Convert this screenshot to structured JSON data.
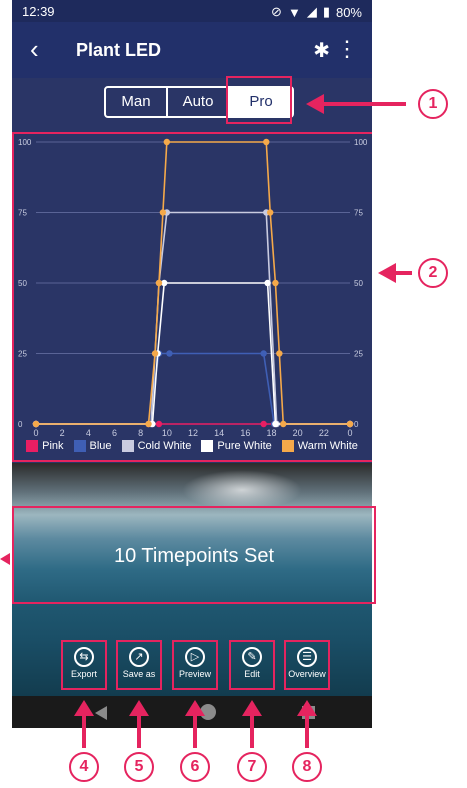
{
  "status": {
    "time": "12:39",
    "battery": "80%"
  },
  "appbar": {
    "title": "Plant LED",
    "back_icon": "back-icon",
    "bluetooth_icon": "bluetooth-icon",
    "more_icon": "more-vert-icon"
  },
  "modes": [
    "Man",
    "Auto",
    "Pro"
  ],
  "active_mode": "Pro",
  "chart_data": {
    "type": "line",
    "x_ticks": [
      "0",
      "2",
      "4",
      "6",
      "8",
      "10",
      "12",
      "14",
      "16",
      "18",
      "20",
      "22",
      "0"
    ],
    "y_ticks": [
      "0",
      "25",
      "50",
      "75",
      "100"
    ],
    "ylim": [
      0,
      100
    ],
    "xlim": [
      0,
      24
    ],
    "series": [
      {
        "name": "Pink",
        "color": "#e91e63",
        "x": [
          0,
          8.6,
          9.4,
          17.4,
          18.2,
          24
        ],
        "y": [
          0,
          0,
          0,
          0,
          0,
          0
        ]
      },
      {
        "name": "Blue",
        "color": "#3f5fb5",
        "x": [
          0,
          8.6,
          9.4,
          10.2,
          17.4,
          18.2,
          24
        ],
        "y": [
          0,
          0,
          25,
          25,
          25,
          0,
          0
        ]
      },
      {
        "name": "Cold White",
        "color": "#c9cbe0",
        "x": [
          0,
          8.8,
          9.4,
          10.0,
          17.6,
          18.4,
          24
        ],
        "y": [
          0,
          0,
          50,
          75,
          75,
          0,
          0
        ]
      },
      {
        "name": "Pure White",
        "color": "#ffffff",
        "x": [
          0,
          8.9,
          9.3,
          9.8,
          17.7,
          18.3,
          24
        ],
        "y": [
          0,
          0,
          25,
          50,
          50,
          0,
          0
        ]
      },
      {
        "name": "Warm White",
        "color": "#f5a94a",
        "x": [
          0,
          8.6,
          9.1,
          9.4,
          9.7,
          10.0,
          17.6,
          17.9,
          18.3,
          18.6,
          18.9,
          24
        ],
        "y": [
          0,
          0,
          25,
          50,
          75,
          100,
          100,
          75,
          50,
          25,
          0,
          0
        ]
      }
    ],
    "legend": [
      "Pink",
      "Blue",
      "Cold White",
      "Pure White",
      "Warm White"
    ],
    "grid": true
  },
  "panel": {
    "timepoints_label": "10 Timepoints Set"
  },
  "tools": [
    {
      "label": "Export",
      "icon": "export-icon"
    },
    {
      "label": "Save as",
      "icon": "save-as-icon"
    },
    {
      "label": "Preview",
      "icon": "preview-icon"
    },
    {
      "label": "Edit",
      "icon": "edit-icon"
    },
    {
      "label": "Overview",
      "icon": "overview-icon"
    }
  ],
  "annotations": {
    "n1": "1",
    "n2": "2",
    "n4": "4",
    "n5": "5",
    "n6": "6",
    "n7": "7",
    "n8": "8"
  },
  "colors": {
    "accent": "#e5245f",
    "background": "#2a3566"
  }
}
